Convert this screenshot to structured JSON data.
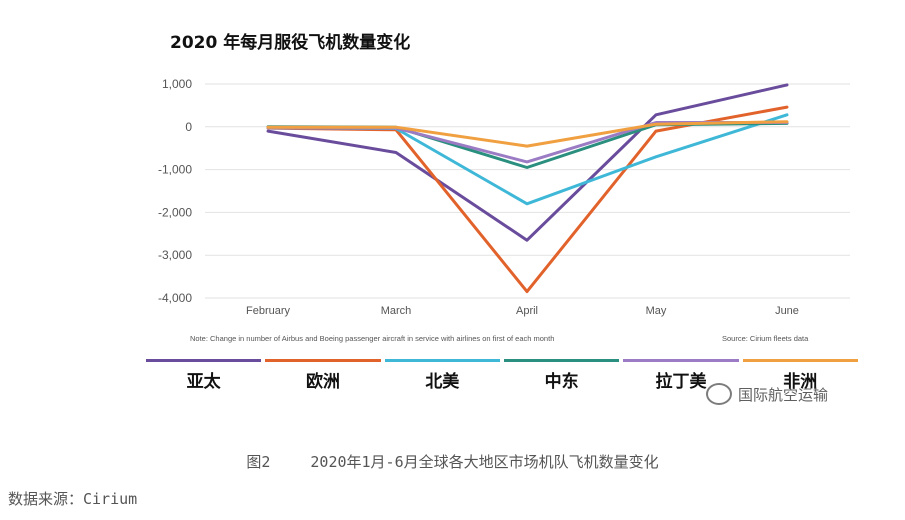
{
  "chart_data": {
    "type": "line",
    "title": "2020 年每月服役飞机数量变化",
    "categories": [
      "February",
      "March",
      "April",
      "May",
      "June"
    ],
    "ylim": [
      -4000,
      1000
    ],
    "yticks": [
      1000,
      0,
      -1000,
      -2000,
      -3000,
      -4000
    ],
    "ytick_labels": [
      "1,000",
      "0",
      "-1,000",
      "-2,000",
      "-3,000",
      "-4,000"
    ],
    "grid": true,
    "legend_position": "bottom",
    "series": [
      {
        "name": "亚太",
        "color": "#6a4c9c",
        "values": [
          -100,
          -600,
          -2650,
          280,
          980
        ]
      },
      {
        "name": "欧洲",
        "color": "#e2622b",
        "values": [
          -30,
          -70,
          -3850,
          -100,
          460
        ]
      },
      {
        "name": "北美",
        "color": "#3fb8d8",
        "values": [
          -20,
          -40,
          -1800,
          -700,
          280
        ]
      },
      {
        "name": "中东",
        "color": "#2a8f7e",
        "values": [
          0,
          -10,
          -950,
          50,
          80
        ]
      },
      {
        "name": "拉丁美",
        "color": "#9b7cc4",
        "values": [
          -20,
          -30,
          -820,
          100,
          100
        ]
      },
      {
        "name": "非洲",
        "color": "#f0a040",
        "values": [
          -10,
          -10,
          -450,
          60,
          120
        ]
      }
    ],
    "note": "Note: Change in number of Airbus and Boeing passenger aircraft in service with airlines on first of each month",
    "source_note": "Source: Cirium fleets data"
  },
  "watermark": "国际航空运输",
  "caption": {
    "figure_no": "图2",
    "text": "2020年1月-6月全球各大地区市场机队飞机数量变化"
  },
  "data_source": "数据来源：Cirium"
}
